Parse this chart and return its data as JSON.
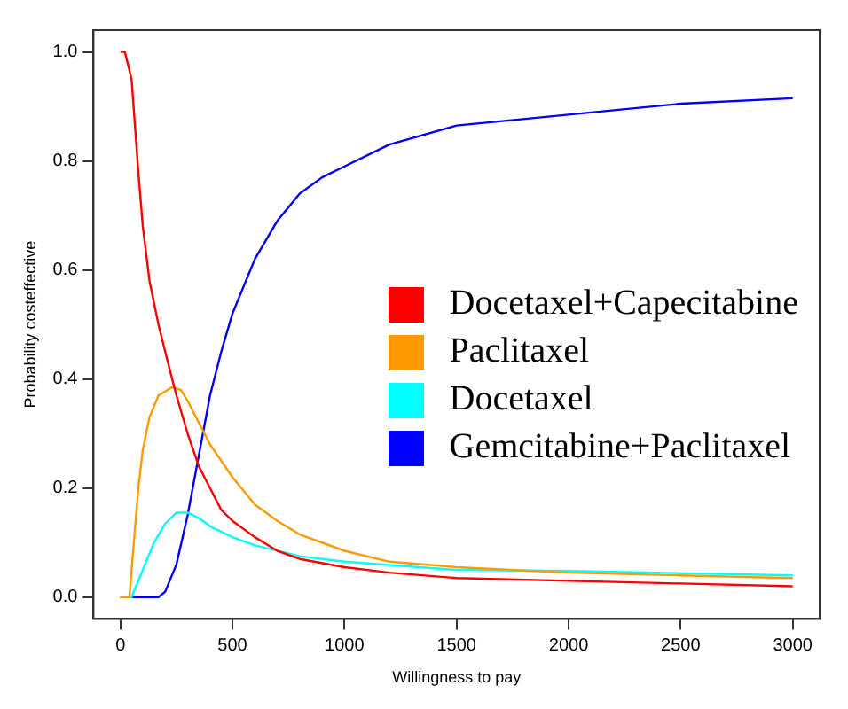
{
  "chart_data": {
    "type": "line",
    "xlabel": "Willingness to pay",
    "ylabel": "Probability costeffective",
    "xlim": [
      -120,
      3120
    ],
    "ylim": [
      -0.04,
      1.04
    ],
    "xticks": [
      0,
      500,
      1000,
      1500,
      2000,
      2500,
      3000
    ],
    "yticks": [
      {
        "value": 0,
        "label": "0.0"
      },
      0.2,
      0.4,
      0.6,
      0.8,
      {
        "value": 1,
        "label": "1.0"
      }
    ],
    "grid": false,
    "legend": "right",
    "marker": "none",
    "line_style": "solid",
    "series": [
      {
        "name": "Docetaxel+Capecitabine",
        "color": "#ff0000",
        "x": [
          0,
          20,
          50,
          80,
          100,
          130,
          170,
          200,
          250,
          300,
          350,
          400,
          450,
          500,
          600,
          700,
          800,
          1000,
          1200,
          1500,
          2000,
          2500,
          3000
        ],
        "values": [
          1.0,
          1.0,
          0.95,
          0.78,
          0.68,
          0.58,
          0.5,
          0.45,
          0.37,
          0.3,
          0.24,
          0.2,
          0.16,
          0.14,
          0.11,
          0.085,
          0.07,
          0.055,
          0.045,
          0.035,
          0.03,
          0.025,
          0.02
        ]
      },
      {
        "name": "Paclitaxel",
        "color": "#ff9900",
        "x": [
          0,
          40,
          60,
          80,
          100,
          130,
          170,
          230,
          270,
          300,
          350,
          400,
          500,
          600,
          700,
          800,
          1000,
          1200,
          1500,
          2000,
          2500,
          3000
        ],
        "values": [
          0,
          0,
          0.1,
          0.2,
          0.27,
          0.33,
          0.37,
          0.385,
          0.38,
          0.36,
          0.32,
          0.28,
          0.22,
          0.17,
          0.14,
          0.115,
          0.085,
          0.065,
          0.055,
          0.045,
          0.04,
          0.035
        ]
      },
      {
        "name": "Docetaxel",
        "color": "#00ffff",
        "x": [
          0,
          50,
          100,
          150,
          200,
          250,
          300,
          350,
          400,
          500,
          600,
          800,
          1000,
          1500,
          2000,
          3000
        ],
        "values": [
          0,
          0,
          0.05,
          0.1,
          0.135,
          0.155,
          0.155,
          0.145,
          0.13,
          0.11,
          0.095,
          0.075,
          0.065,
          0.05,
          0.048,
          0.04
        ]
      },
      {
        "name": "Gemcitabine+Paclitaxel",
        "color": "#0000ff",
        "x": [
          0,
          170,
          200,
          250,
          300,
          350,
          400,
          450,
          500,
          600,
          700,
          800,
          900,
          1000,
          1200,
          1500,
          2000,
          2500,
          3000
        ],
        "values": [
          0,
          0,
          0.01,
          0.06,
          0.15,
          0.26,
          0.37,
          0.45,
          0.52,
          0.62,
          0.69,
          0.74,
          0.77,
          0.79,
          0.83,
          0.865,
          0.885,
          0.905,
          0.915
        ]
      }
    ]
  }
}
